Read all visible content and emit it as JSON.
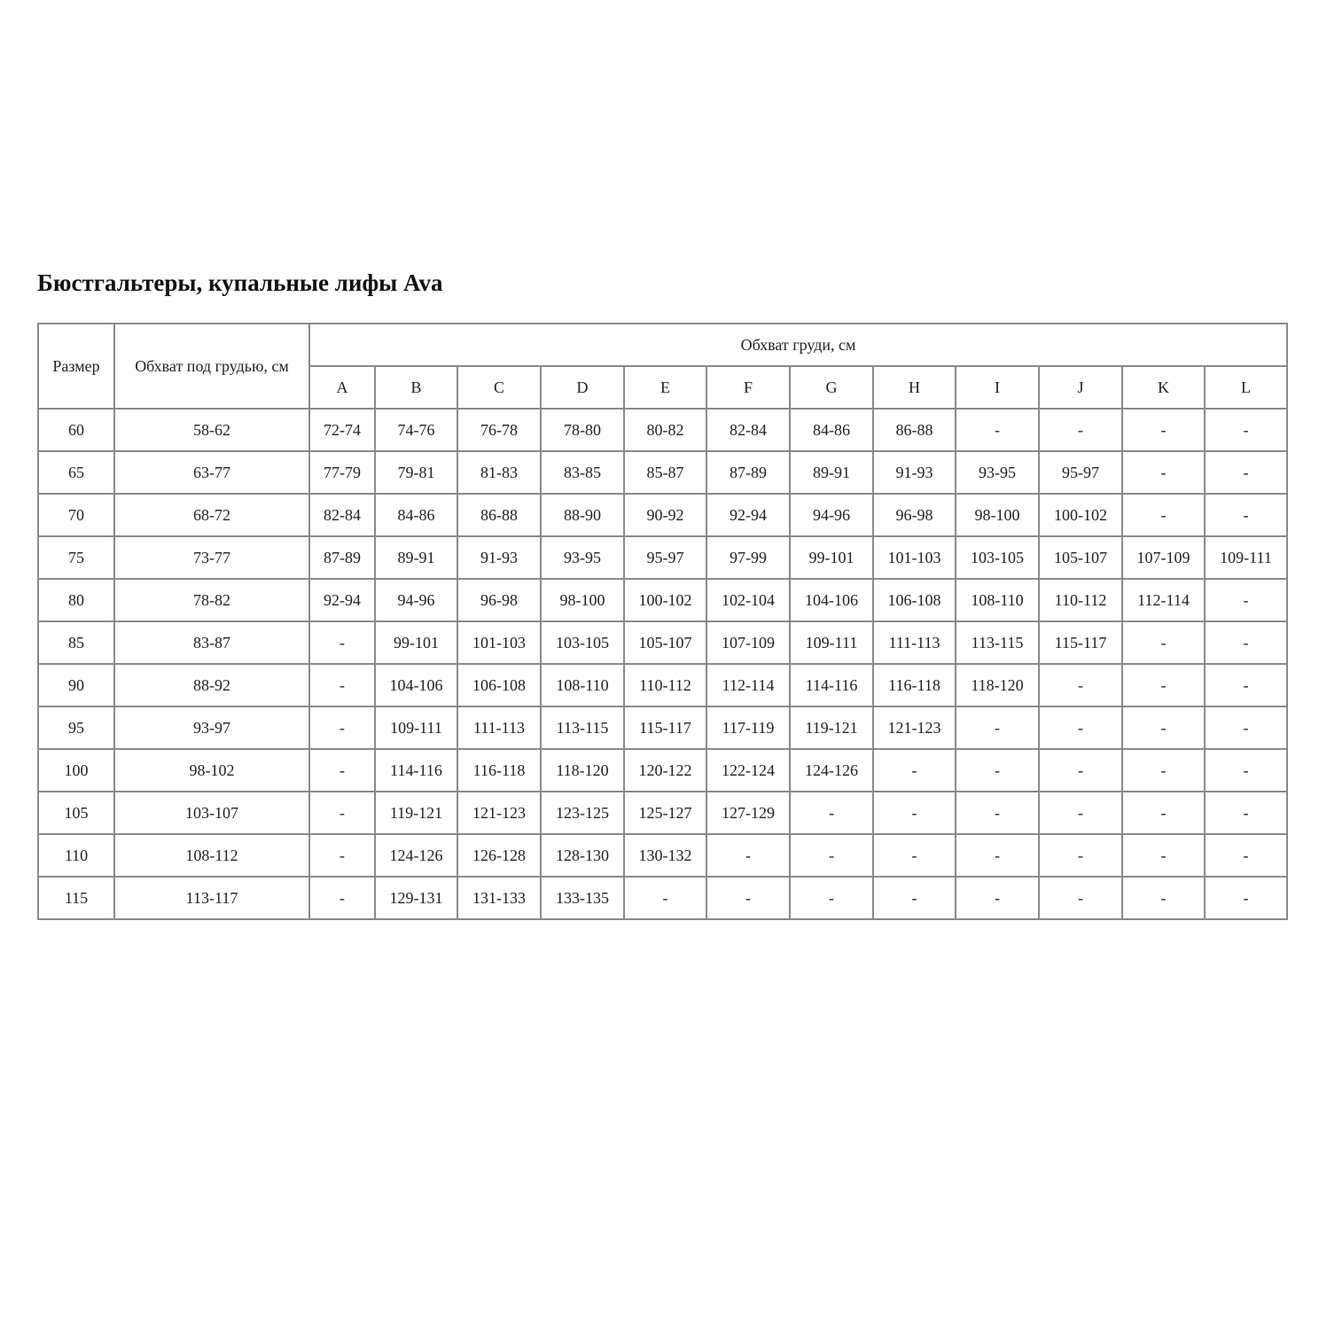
{
  "title": "Бюстгальтеры, купальные лифы Ava",
  "table": {
    "size_header": "Размер",
    "underbust_header": "Обхват под грудью, см",
    "bust_header": "Обхват груди, см",
    "cups": [
      "A",
      "B",
      "C",
      "D",
      "E",
      "F",
      "G",
      "H",
      "I",
      "J",
      "K",
      "L"
    ],
    "rows": [
      {
        "size": "60",
        "underbust": "58-62",
        "bust": [
          "72-74",
          "74-76",
          "76-78",
          "78-80",
          "80-82",
          "82-84",
          "84-86",
          "86-88",
          "-",
          "-",
          "-",
          "-"
        ]
      },
      {
        "size": "65",
        "underbust": "63-77",
        "bust": [
          "77-79",
          "79-81",
          "81-83",
          "83-85",
          "85-87",
          "87-89",
          "89-91",
          "91-93",
          "93-95",
          "95-97",
          "-",
          "-"
        ]
      },
      {
        "size": "70",
        "underbust": "68-72",
        "bust": [
          "82-84",
          "84-86",
          "86-88",
          "88-90",
          "90-92",
          "92-94",
          "94-96",
          "96-98",
          "98-100",
          "100-102",
          "-",
          "-"
        ]
      },
      {
        "size": "75",
        "underbust": "73-77",
        "bust": [
          "87-89",
          "89-91",
          "91-93",
          "93-95",
          "95-97",
          "97-99",
          "99-101",
          "101-103",
          "103-105",
          "105-107",
          "107-109",
          "109-111"
        ]
      },
      {
        "size": "80",
        "underbust": "78-82",
        "bust": [
          "92-94",
          "94-96",
          "96-98",
          "98-100",
          "100-102",
          "102-104",
          "104-106",
          "106-108",
          "108-110",
          "110-112",
          "112-114",
          "-"
        ]
      },
      {
        "size": "85",
        "underbust": "83-87",
        "bust": [
          "-",
          "99-101",
          "101-103",
          "103-105",
          "105-107",
          "107-109",
          "109-111",
          "111-113",
          "113-115",
          "115-117",
          "-",
          "-"
        ]
      },
      {
        "size": "90",
        "underbust": "88-92",
        "bust": [
          "-",
          "104-106",
          "106-108",
          "108-110",
          "110-112",
          "112-114",
          "114-116",
          "116-118",
          "118-120",
          "-",
          "-",
          "-"
        ]
      },
      {
        "size": "95",
        "underbust": "93-97",
        "bust": [
          "-",
          "109-111",
          "111-113",
          "113-115",
          "115-117",
          "117-119",
          "119-121",
          "121-123",
          "-",
          "-",
          "-",
          "-"
        ]
      },
      {
        "size": "100",
        "underbust": "98-102",
        "bust": [
          "-",
          "114-116",
          "116-118",
          "118-120",
          "120-122",
          "122-124",
          "124-126",
          "-",
          "-",
          "-",
          "-",
          "-"
        ]
      },
      {
        "size": "105",
        "underbust": "103-107",
        "bust": [
          "-",
          "119-121",
          "121-123",
          "123-125",
          "125-127",
          "127-129",
          "-",
          "-",
          "-",
          "-",
          "-",
          "-"
        ]
      },
      {
        "size": "110",
        "underbust": "108-112",
        "bust": [
          "-",
          "124-126",
          "126-128",
          "128-130",
          "130-132",
          "-",
          "-",
          "-",
          "-",
          "-",
          "-",
          "-"
        ]
      },
      {
        "size": "115",
        "underbust": "113-117",
        "bust": [
          "-",
          "129-131",
          "131-133",
          "133-135",
          "-",
          "-",
          "-",
          "-",
          "-",
          "-",
          "-",
          "-"
        ]
      }
    ]
  }
}
